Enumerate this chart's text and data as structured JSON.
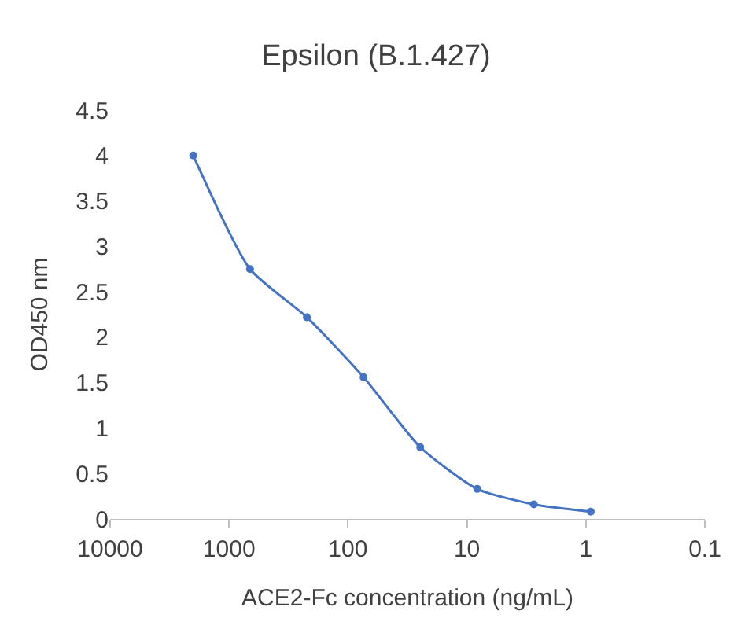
{
  "chart_data": {
    "type": "line",
    "title": "Epsilon (B.1.427)",
    "xlabel": "ACE2-Fc concentration (ng/mL)",
    "ylabel": "OD450 nm",
    "x": [
      2000,
      667,
      222,
      74,
      24.7,
      8.2,
      2.74,
      0.91
    ],
    "series": [
      {
        "color": "#4472c4",
        "values": [
          4.0,
          2.75,
          2.22,
          1.56,
          0.79,
          0.33,
          0.16,
          0.08
        ]
      }
    ],
    "log": "x",
    "xlim": [
      10000,
      0.1
    ],
    "xticks": [
      10000,
      1000,
      100,
      10,
      1,
      0.1
    ],
    "ylim": [
      0,
      4.5
    ],
    "yticks": [
      0,
      0.5,
      1,
      1.5,
      2,
      2.5,
      3,
      3.5,
      4,
      4.5
    ],
    "grid": false,
    "marker": "circle",
    "line_style": "solid"
  }
}
